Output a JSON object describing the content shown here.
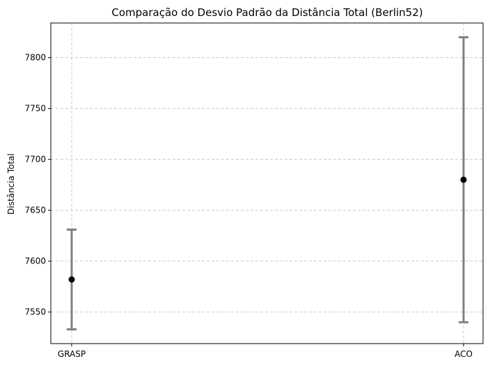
{
  "chart_data": {
    "type": "errorbar",
    "title": "Comparação do Desvio Padrão da Distância Total (Berlin52)",
    "xlabel": "",
    "ylabel": "Distância Total",
    "categories": [
      "GRASP",
      "ACO"
    ],
    "means": [
      7582,
      7680
    ],
    "std": [
      49,
      140
    ],
    "ylim": [
      7519,
      7834
    ],
    "yticks": [
      7550,
      7600,
      7650,
      7700,
      7750,
      7800
    ],
    "grid": true,
    "grid_style": "dashed",
    "colors": {
      "marker": "#000000",
      "errorbar": "#808080",
      "grid": "#c8c8c8",
      "axes": "#000000"
    }
  }
}
